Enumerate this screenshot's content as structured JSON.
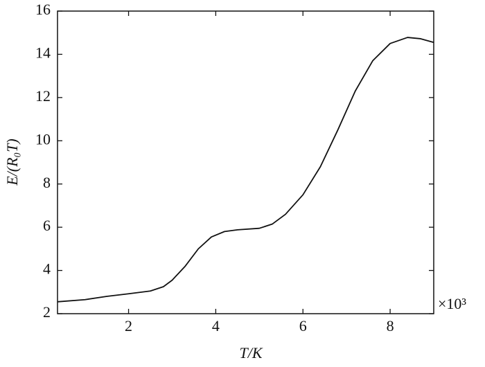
{
  "chart_data": {
    "type": "line",
    "xlabel": "T/K",
    "ylabel": "E/(R₀T)",
    "x_scale_label": "×10³",
    "x": [
      0.37,
      1,
      1.5,
      2,
      2.5,
      2.8,
      3,
      3.3,
      3.6,
      3.9,
      4.2,
      4.5,
      5,
      5.3,
      5.6,
      6,
      6.4,
      6.8,
      7.2,
      7.6,
      8,
      8.4,
      8.7,
      9
    ],
    "series": [
      {
        "color": "#111111",
        "values": [
          2.55,
          2.65,
          2.8,
          2.92,
          3.05,
          3.25,
          3.55,
          4.2,
          5.0,
          5.55,
          5.8,
          5.88,
          5.95,
          6.15,
          6.6,
          7.5,
          8.8,
          10.5,
          12.3,
          13.7,
          14.5,
          14.78,
          14.72,
          14.55
        ]
      }
    ],
    "xlim": [
      0.37,
      9
    ],
    "ylim": [
      2,
      16
    ],
    "xticks": [
      2,
      4,
      6,
      8
    ],
    "yticks": [
      2,
      4,
      6,
      8,
      10,
      12,
      14,
      16
    ]
  }
}
